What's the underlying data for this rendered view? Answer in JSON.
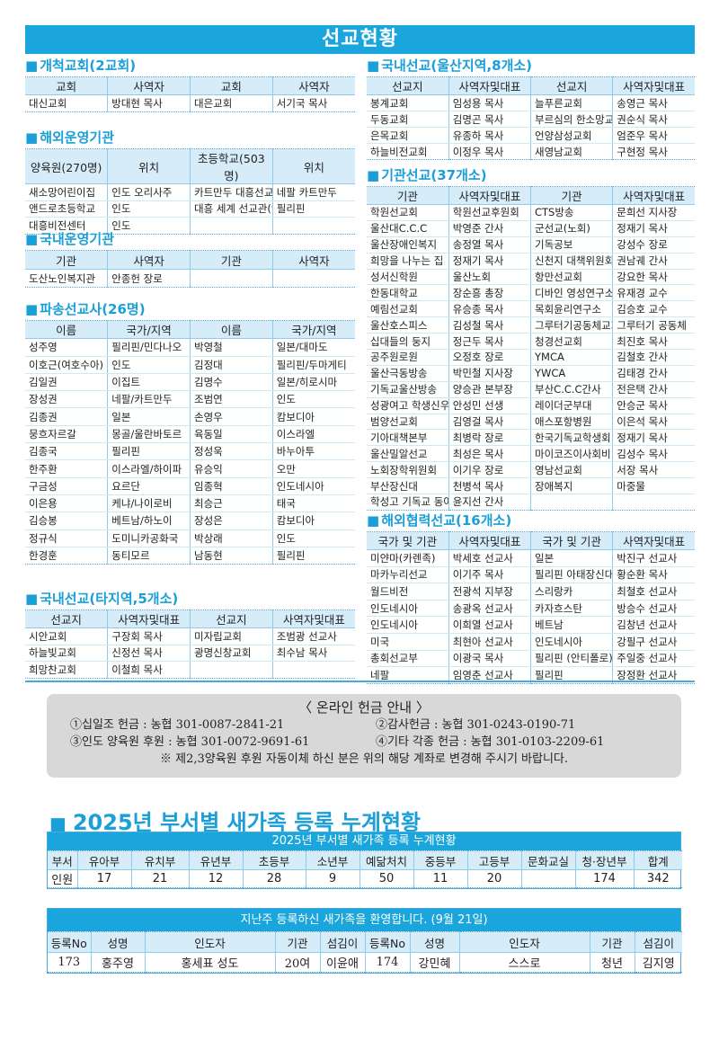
{
  "title": "선교현황",
  "colors": {
    "accent": "#1aa6dc",
    "header_bg": "#d6ecf8",
    "info_box": "#d8d8d8"
  },
  "sections": {
    "pioneer": {
      "title": "개척교회(2교회)",
      "headers": [
        "교회",
        "사역자",
        "교회",
        "사역자"
      ],
      "rows": [
        [
          "대신교회",
          "방대현 목사",
          "대은교회",
          "서기국 목사"
        ]
      ]
    },
    "overseas_inst": {
      "title": "해외운영기관",
      "headers": [
        "양육원(270명)",
        "위치",
        "초등학교(503명)",
        "위치"
      ],
      "rows": [
        [
          "새소망어린이집",
          "인도 오리사주",
          "카트만두 대흥선교센터",
          "네팔 카트만두"
        ],
        [
          "앤드로초등학교",
          "인도",
          "대흥 세계 선교관(잉헬리스)",
          "필리핀"
        ],
        [
          "대흥비전센터",
          "인도",
          "",
          ""
        ]
      ]
    },
    "domestic_inst": {
      "title": "국내운영기관",
      "headers": [
        "기관",
        "사역자",
        "기관",
        "사역자"
      ],
      "rows": [
        [
          "도산노인복지관",
          "안종헌 장로",
          "",
          ""
        ]
      ]
    },
    "missionaries": {
      "title": "파송선교사(26명)",
      "headers": [
        "이름",
        "국가/지역",
        "이름",
        "국가/지역"
      ],
      "rows": [
        [
          "성주영",
          "필리핀/민다나오",
          "박영철",
          "일본/대마도"
        ],
        [
          "이호근(여호수아)",
          "인도",
          "김정대",
          "필리핀/두마게티"
        ],
        [
          "김일권",
          "이집트",
          "김명수",
          "일본/히로시마"
        ],
        [
          "장성권",
          "네팔/카트만두",
          "조범연",
          "인도"
        ],
        [
          "김종권",
          "일본",
          "손영우",
          "캄보디아"
        ],
        [
          "뭉흐자르갈",
          "몽골/울란바토르",
          "육동일",
          "이스라엘"
        ],
        [
          "김종국",
          "필리핀",
          "정성욱",
          "바누아투"
        ],
        [
          "한주환",
          "이스라엘/하이파",
          "유승익",
          "오만"
        ],
        [
          "구금성",
          "요르단",
          "임종혁",
          "인도네시아"
        ],
        [
          "이은용",
          "케냐/나이로비",
          "최승근",
          "태국"
        ],
        [
          "김승봉",
          "베트남/하노이",
          "장성은",
          "캄보디아"
        ],
        [
          "정규식",
          "도미니카공화국",
          "박상래",
          "인도"
        ],
        [
          "한경훈",
          "동티모르",
          "남동현",
          "필리핀"
        ]
      ]
    },
    "domestic_other": {
      "title": "국내선교(타지역,5개소)",
      "headers": [
        "선교지",
        "사역자및대표",
        "선교지",
        "사역자및대표"
      ],
      "rows": [
        [
          "시안교회",
          "구장회 목사",
          "미자립교회",
          "조범광 선교사"
        ],
        [
          "하늘빛교회",
          "신정선 목사",
          "광명신창교회",
          "최수남 목사"
        ],
        [
          "희망찬교회",
          "이철희 목사",
          "",
          ""
        ]
      ]
    },
    "domestic_ulsan": {
      "title": "국내선교(울산지역,8개소)",
      "headers": [
        "선교지",
        "사역자및대표",
        "선교지",
        "사역자및대표"
      ],
      "rows": [
        [
          "봉계교회",
          "임성용 목사",
          "늘푸른교회",
          "송영근 목사"
        ],
        [
          "두동교회",
          "김명곤 목사",
          "부르심의 한소망교회",
          "권순식 목사"
        ],
        [
          "은목교회",
          "유종하 목사",
          "언양삼성교회",
          "엄준우 목사"
        ],
        [
          "하늘비전교회",
          "이정우 목사",
          "새영남교회",
          "구현정 목사"
        ]
      ]
    },
    "institution": {
      "title": "기관선교(37개소)",
      "headers": [
        "기관",
        "사역자및대표",
        "기관",
        "사역자및대표"
      ],
      "rows": [
        [
          "학원선교회",
          "학원선교후원회",
          "CTS방송",
          "문희선 지사장"
        ],
        [
          "울산대C.C.C",
          "박영준 간사",
          "군선교(노회)",
          "정재기 목사"
        ],
        [
          "울산장애인복지",
          "송정열 목사",
          "기독공보",
          "강성수 장로"
        ],
        [
          "희망을 나누는 집",
          "정재기 목사",
          "신천지 대책위원회",
          "권남궤 간사"
        ],
        [
          "성서신학원",
          "울산노회",
          "항만선교회",
          "강요한 목사"
        ],
        [
          "한동대학교",
          "장순흥 총장",
          "디바인 영성연구소",
          "유재경 교수"
        ],
        [
          "예림선교회",
          "유승종 목사",
          "목회윤리연구소",
          "김승호 교수"
        ],
        [
          "울산호스피스",
          "김성철 목사",
          "그루터기공동체교회",
          "그루터기 공동체"
        ],
        [
          "십대들의 둥지",
          "정근두 목사",
          "청경선교회",
          "최진호 목사"
        ],
        [
          "공주원로원",
          "오정호 장로",
          "YMCA",
          "김철호 간사"
        ],
        [
          "울산극동방송",
          "박민철 지사장",
          "YWCA",
          "김태경 간사"
        ],
        [
          "기독교울산방송",
          "양승관 본부장",
          "부산C.C.C간사",
          "전은택 간사"
        ],
        [
          "성광여고 학생신우회",
          "안성민 선생",
          "레이더군부대",
          "안승군 목사"
        ],
        [
          "범양선교회",
          "김영걸 목사",
          "애스포항병원",
          "이은석 목사"
        ],
        [
          "기아대책본부",
          "최병락 장로",
          "한국기독교학생회",
          "정재기 목사"
        ],
        [
          "울산밀알선교",
          "최성은 목사",
          "마이코즈이사회비",
          "김성수 목사"
        ],
        [
          "노회장학위원회",
          "이기우 장로",
          "영남선교회",
          "서장 목사"
        ],
        [
          "부산장신대",
          "천병석 목사",
          "장애복지",
          "마중물"
        ],
        [
          "학성고 기독교 동아리",
          "윤지선 간사",
          "",
          ""
        ]
      ]
    },
    "overseas_coop": {
      "title": "해외협력선교(16개소)",
      "headers": [
        "국가 및 기관",
        "사역자및대표",
        "국가 및 기관",
        "사역자및대표"
      ],
      "rows": [
        [
          "미얀마(카렌족)",
          "박세호 선교사",
          "일본",
          "박진구 선교사"
        ],
        [
          "마카누리선교",
          "이기주 목사",
          "필리핀 아태장신대",
          "황순환 목사"
        ],
        [
          "월드비전",
          "전광석 지부장",
          "스리랑카",
          "최철호 선교사"
        ],
        [
          "인도네시아",
          "송광옥 선교사",
          "카자흐스탄",
          "방승수 선교사"
        ],
        [
          "인도네시아",
          "이희열 선교사",
          "베트남",
          "김창년 선교사"
        ],
        [
          "미국",
          "최현아 선교사",
          "인도네시아",
          "강필구 선교사"
        ],
        [
          "총회선교부",
          "이광국 목사",
          "필리핀 (안티폴로)",
          "주일중 선교사"
        ],
        [
          "네팔",
          "임영춘 선교사",
          "필리핀",
          "장정환 선교사"
        ]
      ]
    }
  },
  "offering": {
    "title": "〈 온라인 헌금 안내 〉",
    "items": [
      "①십일조 헌금 : 농협 301-0087-2841-21",
      "②감사헌금 : 농협 301-0243-0190-71",
      "③인도 양육원 후원 : 농협 301-0072-9691-61",
      "④기타 각종 헌금 : 농협 301-0103-2209-61"
    ],
    "note": "※ 제2,3양육원 후원 자동이체 하신 분은 위의 해당 계좌로 변경해 주시기 바랍니다."
  },
  "registration": {
    "heading": "2025년 부서별 새가족 등록 누계현황",
    "caption": "2025년 부서별 새가족 등록 누계현황",
    "headers": [
      "부서",
      "유아부",
      "유치부",
      "유년부",
      "초등부",
      "소년부",
      "예닮처치",
      "중등부",
      "고등부",
      "문화교실",
      "청·장년부",
      "합계"
    ],
    "rows": [
      [
        "인원",
        "17",
        "21",
        "12",
        "28",
        "9",
        "50",
        "11",
        "20",
        "",
        "174",
        "342"
      ]
    ]
  },
  "welcome": {
    "caption": "지난주 등록하신 새가족을 환영합니다. (9월 21일)",
    "headers": [
      "등록No",
      "성명",
      "인도자",
      "기관",
      "섬김이",
      "등록No",
      "성명",
      "인도자",
      "기관",
      "섬김이"
    ],
    "rows": [
      [
        "173",
        "홍주영",
        "홍세표 성도",
        "20여",
        "이윤애",
        "174",
        "강민혜",
        "스스로",
        "청년",
        "김지영"
      ]
    ]
  }
}
